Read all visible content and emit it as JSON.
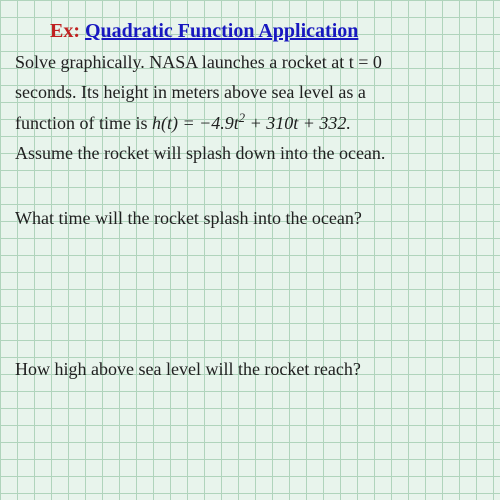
{
  "title": {
    "ex_label": "Ex:",
    "main": "Quadratic Function Application"
  },
  "problem": {
    "line1": "Solve graphically.   NASA launches a rocket at t = 0",
    "line2": "seconds.  Its height in meters above sea level as a",
    "line3_prefix": "function of time is ",
    "formula_h": "h",
    "formula_t1": "(t) = −4.9",
    "formula_t_var": "t",
    "formula_sq": "2",
    "formula_rest": " + 310t + 332.",
    "line4": "Assume the rocket will splash down into the ocean."
  },
  "question1": "What time will the rocket splash into the ocean?",
  "question2": "How high above sea level will the rocket reach?",
  "styling": {
    "grid_color": "#b0d4bc",
    "background_color": "#e8f4ec",
    "grid_size": 17,
    "ex_color": "#c02020",
    "title_color": "#1818c0",
    "text_color": "#202020",
    "highlight_color": "#ffff00",
    "title_fontsize": 20,
    "body_fontsize": 18
  }
}
